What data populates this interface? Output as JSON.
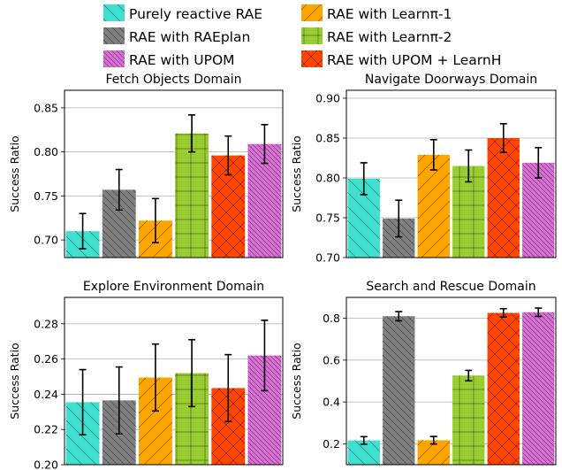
{
  "legend": {
    "items": [
      {
        "label": "Purely reactive RAE",
        "color": "#40e0d0",
        "hatch": "\\"
      },
      {
        "label": "RAE with RAEplan",
        "color": "#808080",
        "hatch": "\\\\"
      },
      {
        "label": "RAE with UPOM",
        "color": "#da70d6",
        "hatch": "\\\\\\"
      },
      {
        "label": "RAE with Learnπ-1",
        "color": "#ffa500",
        "hatch": "/"
      },
      {
        "label": "RAE with Learnπ-2",
        "color": "#9acd32",
        "hatch": "+"
      },
      {
        "label": "RAE with UPOM + LearnH",
        "color": "#ff4500",
        "hatch": "x"
      }
    ]
  },
  "chart_data": [
    {
      "type": "bar",
      "title": "Fetch Objects Domain",
      "ylabel": "Success Ratio",
      "xlabel": "",
      "ylim": [
        0.68,
        0.87
      ],
      "yticks": [
        0.7,
        0.75,
        0.8,
        0.85
      ],
      "ytick_labels": [
        "0.70",
        "0.75",
        "0.80",
        "0.85"
      ],
      "grid": "horizontal",
      "series": [
        {
          "name": "Purely reactive RAE",
          "value": 0.71,
          "err": 0.02
        },
        {
          "name": "RAE with RAEplan",
          "value": 0.757,
          "err": 0.023
        },
        {
          "name": "RAE with Learnπ-1",
          "value": 0.722,
          "err": 0.025
        },
        {
          "name": "RAE with Learnπ-2",
          "value": 0.821,
          "err": 0.021
        },
        {
          "name": "RAE with UPOM + LearnH",
          "value": 0.796,
          "err": 0.022
        },
        {
          "name": "RAE with UPOM",
          "value": 0.809,
          "err": 0.022
        }
      ]
    },
    {
      "type": "bar",
      "title": "Navigate Doorways Domain",
      "ylabel": "Success Ratio",
      "xlabel": "",
      "ylim": [
        0.7,
        0.91
      ],
      "yticks": [
        0.7,
        0.75,
        0.8,
        0.85,
        0.9
      ],
      "ytick_labels": [
        "0.70",
        "0.75",
        "0.80",
        "0.85",
        "0.90"
      ],
      "grid": "horizontal",
      "series": [
        {
          "name": "Purely reactive RAE",
          "value": 0.799,
          "err": 0.02
        },
        {
          "name": "RAE with RAEplan",
          "value": 0.749,
          "err": 0.023
        },
        {
          "name": "RAE with Learnπ-1",
          "value": 0.829,
          "err": 0.019
        },
        {
          "name": "RAE with Learnπ-2",
          "value": 0.815,
          "err": 0.02
        },
        {
          "name": "RAE with UPOM + LearnH",
          "value": 0.85,
          "err": 0.018
        },
        {
          "name": "RAE with UPOM",
          "value": 0.819,
          "err": 0.019
        }
      ]
    },
    {
      "type": "bar",
      "title": "Explore Environment Domain",
      "ylabel": "Success Ratio",
      "xlabel": "",
      "ylim": [
        0.2,
        0.295
      ],
      "yticks": [
        0.2,
        0.22,
        0.24,
        0.26,
        0.28
      ],
      "ytick_labels": [
        "0.20",
        "0.22",
        "0.24",
        "0.26",
        "0.28"
      ],
      "grid": "horizontal",
      "series": [
        {
          "name": "Purely reactive RAE",
          "value": 0.2355,
          "err": 0.0185
        },
        {
          "name": "RAE with RAEplan",
          "value": 0.2365,
          "err": 0.019
        },
        {
          "name": "RAE with Learnπ-1",
          "value": 0.2495,
          "err": 0.019
        },
        {
          "name": "RAE with Learnπ-2",
          "value": 0.252,
          "err": 0.019
        },
        {
          "name": "RAE with UPOM + LearnH",
          "value": 0.2435,
          "err": 0.019
        },
        {
          "name": "RAE with UPOM",
          "value": 0.262,
          "err": 0.02
        }
      ]
    },
    {
      "type": "bar",
      "title": "Search and Rescue Domain",
      "ylabel": "Success Ratio",
      "xlabel": "",
      "ylim": [
        0.1,
        0.9
      ],
      "yticks": [
        0.2,
        0.4,
        0.6,
        0.8
      ],
      "ytick_labels": [
        "0.2",
        "0.4",
        "0.6",
        "0.8"
      ],
      "grid": "horizontal",
      "series": [
        {
          "name": "Purely reactive RAE",
          "value": 0.216,
          "err": 0.018
        },
        {
          "name": "RAE with RAEplan",
          "value": 0.81,
          "err": 0.022
        },
        {
          "name": "RAE with Learnπ-1",
          "value": 0.217,
          "err": 0.018
        },
        {
          "name": "RAE with Learnπ-2",
          "value": 0.526,
          "err": 0.025
        },
        {
          "name": "RAE with UPOM + LearnH",
          "value": 0.826,
          "err": 0.02
        },
        {
          "name": "RAE with UPOM",
          "value": 0.829,
          "err": 0.02
        }
      ]
    }
  ]
}
